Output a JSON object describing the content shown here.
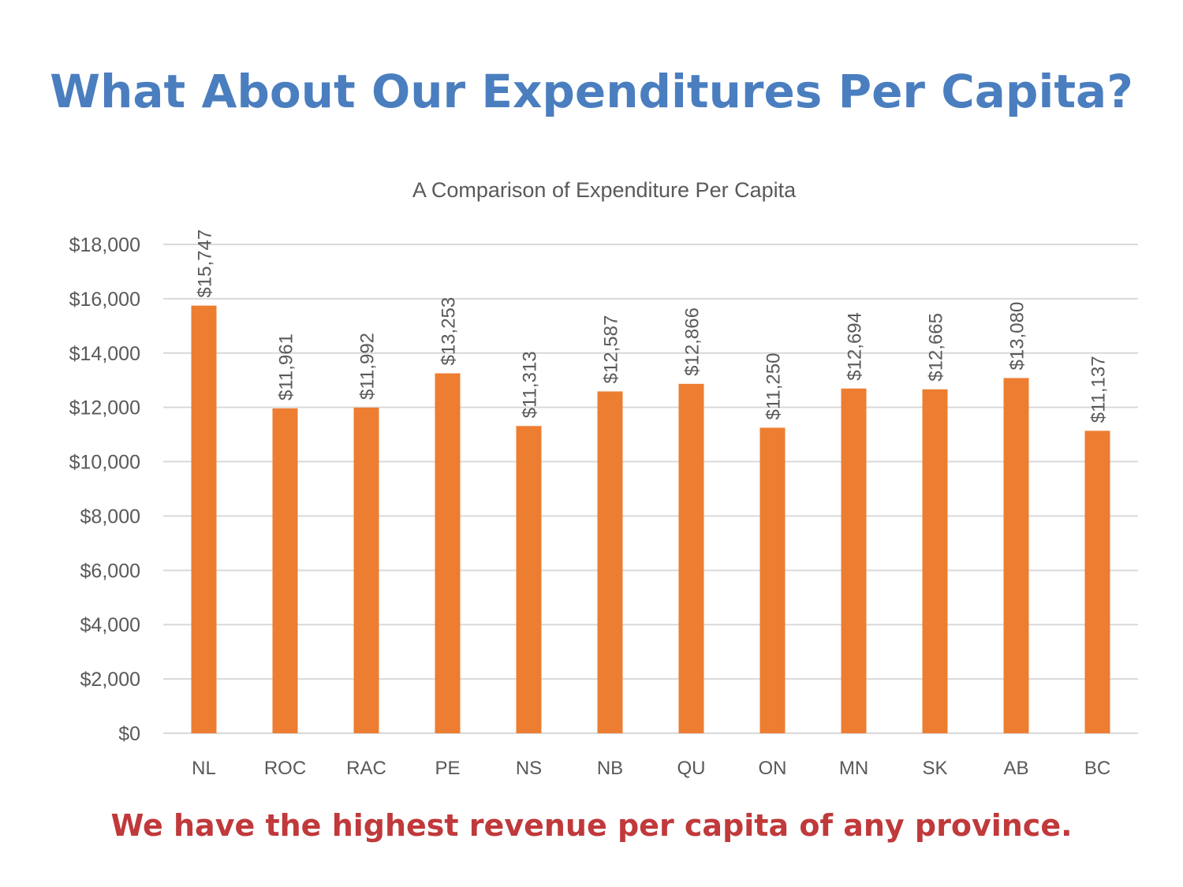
{
  "slide": {
    "title": "What About Our Expenditures Per Capita?",
    "footer": "We have the highest revenue per capita of any province."
  },
  "colors": {
    "title": "#4a7ebf",
    "bar": "#ed7d31",
    "footer": "#c0393b",
    "grid": "#d9d9d9",
    "text": "#595959"
  },
  "chart_data": {
    "type": "bar",
    "title": "A Comparison of Expenditure Per Capita",
    "xlabel": "",
    "ylabel": "",
    "ylim": [
      0,
      18000
    ],
    "yticks": [
      0,
      2000,
      4000,
      6000,
      8000,
      10000,
      12000,
      14000,
      16000,
      18000
    ],
    "ytick_labels": [
      "$0",
      "$2,000",
      "$4,000",
      "$6,000",
      "$8,000",
      "$10,000",
      "$12,000",
      "$14,000",
      "$16,000",
      "$18,000"
    ],
    "grid": true,
    "categories": [
      "NL",
      "ROC",
      "RAC",
      "PE",
      "NS",
      "NB",
      "QU",
      "ON",
      "MN",
      "SK",
      "AB",
      "BC"
    ],
    "values": [
      15747,
      11961,
      11992,
      13253,
      11313,
      12587,
      12866,
      11250,
      12694,
      12665,
      13080,
      11137
    ],
    "data_labels": [
      "$15,747",
      "$11,961",
      "$11,992",
      "$13,253",
      "$11,313",
      "$12,587",
      "$12,866",
      "$11,250",
      "$12,694",
      "$12,665",
      "$13,080",
      "$11,137"
    ]
  }
}
